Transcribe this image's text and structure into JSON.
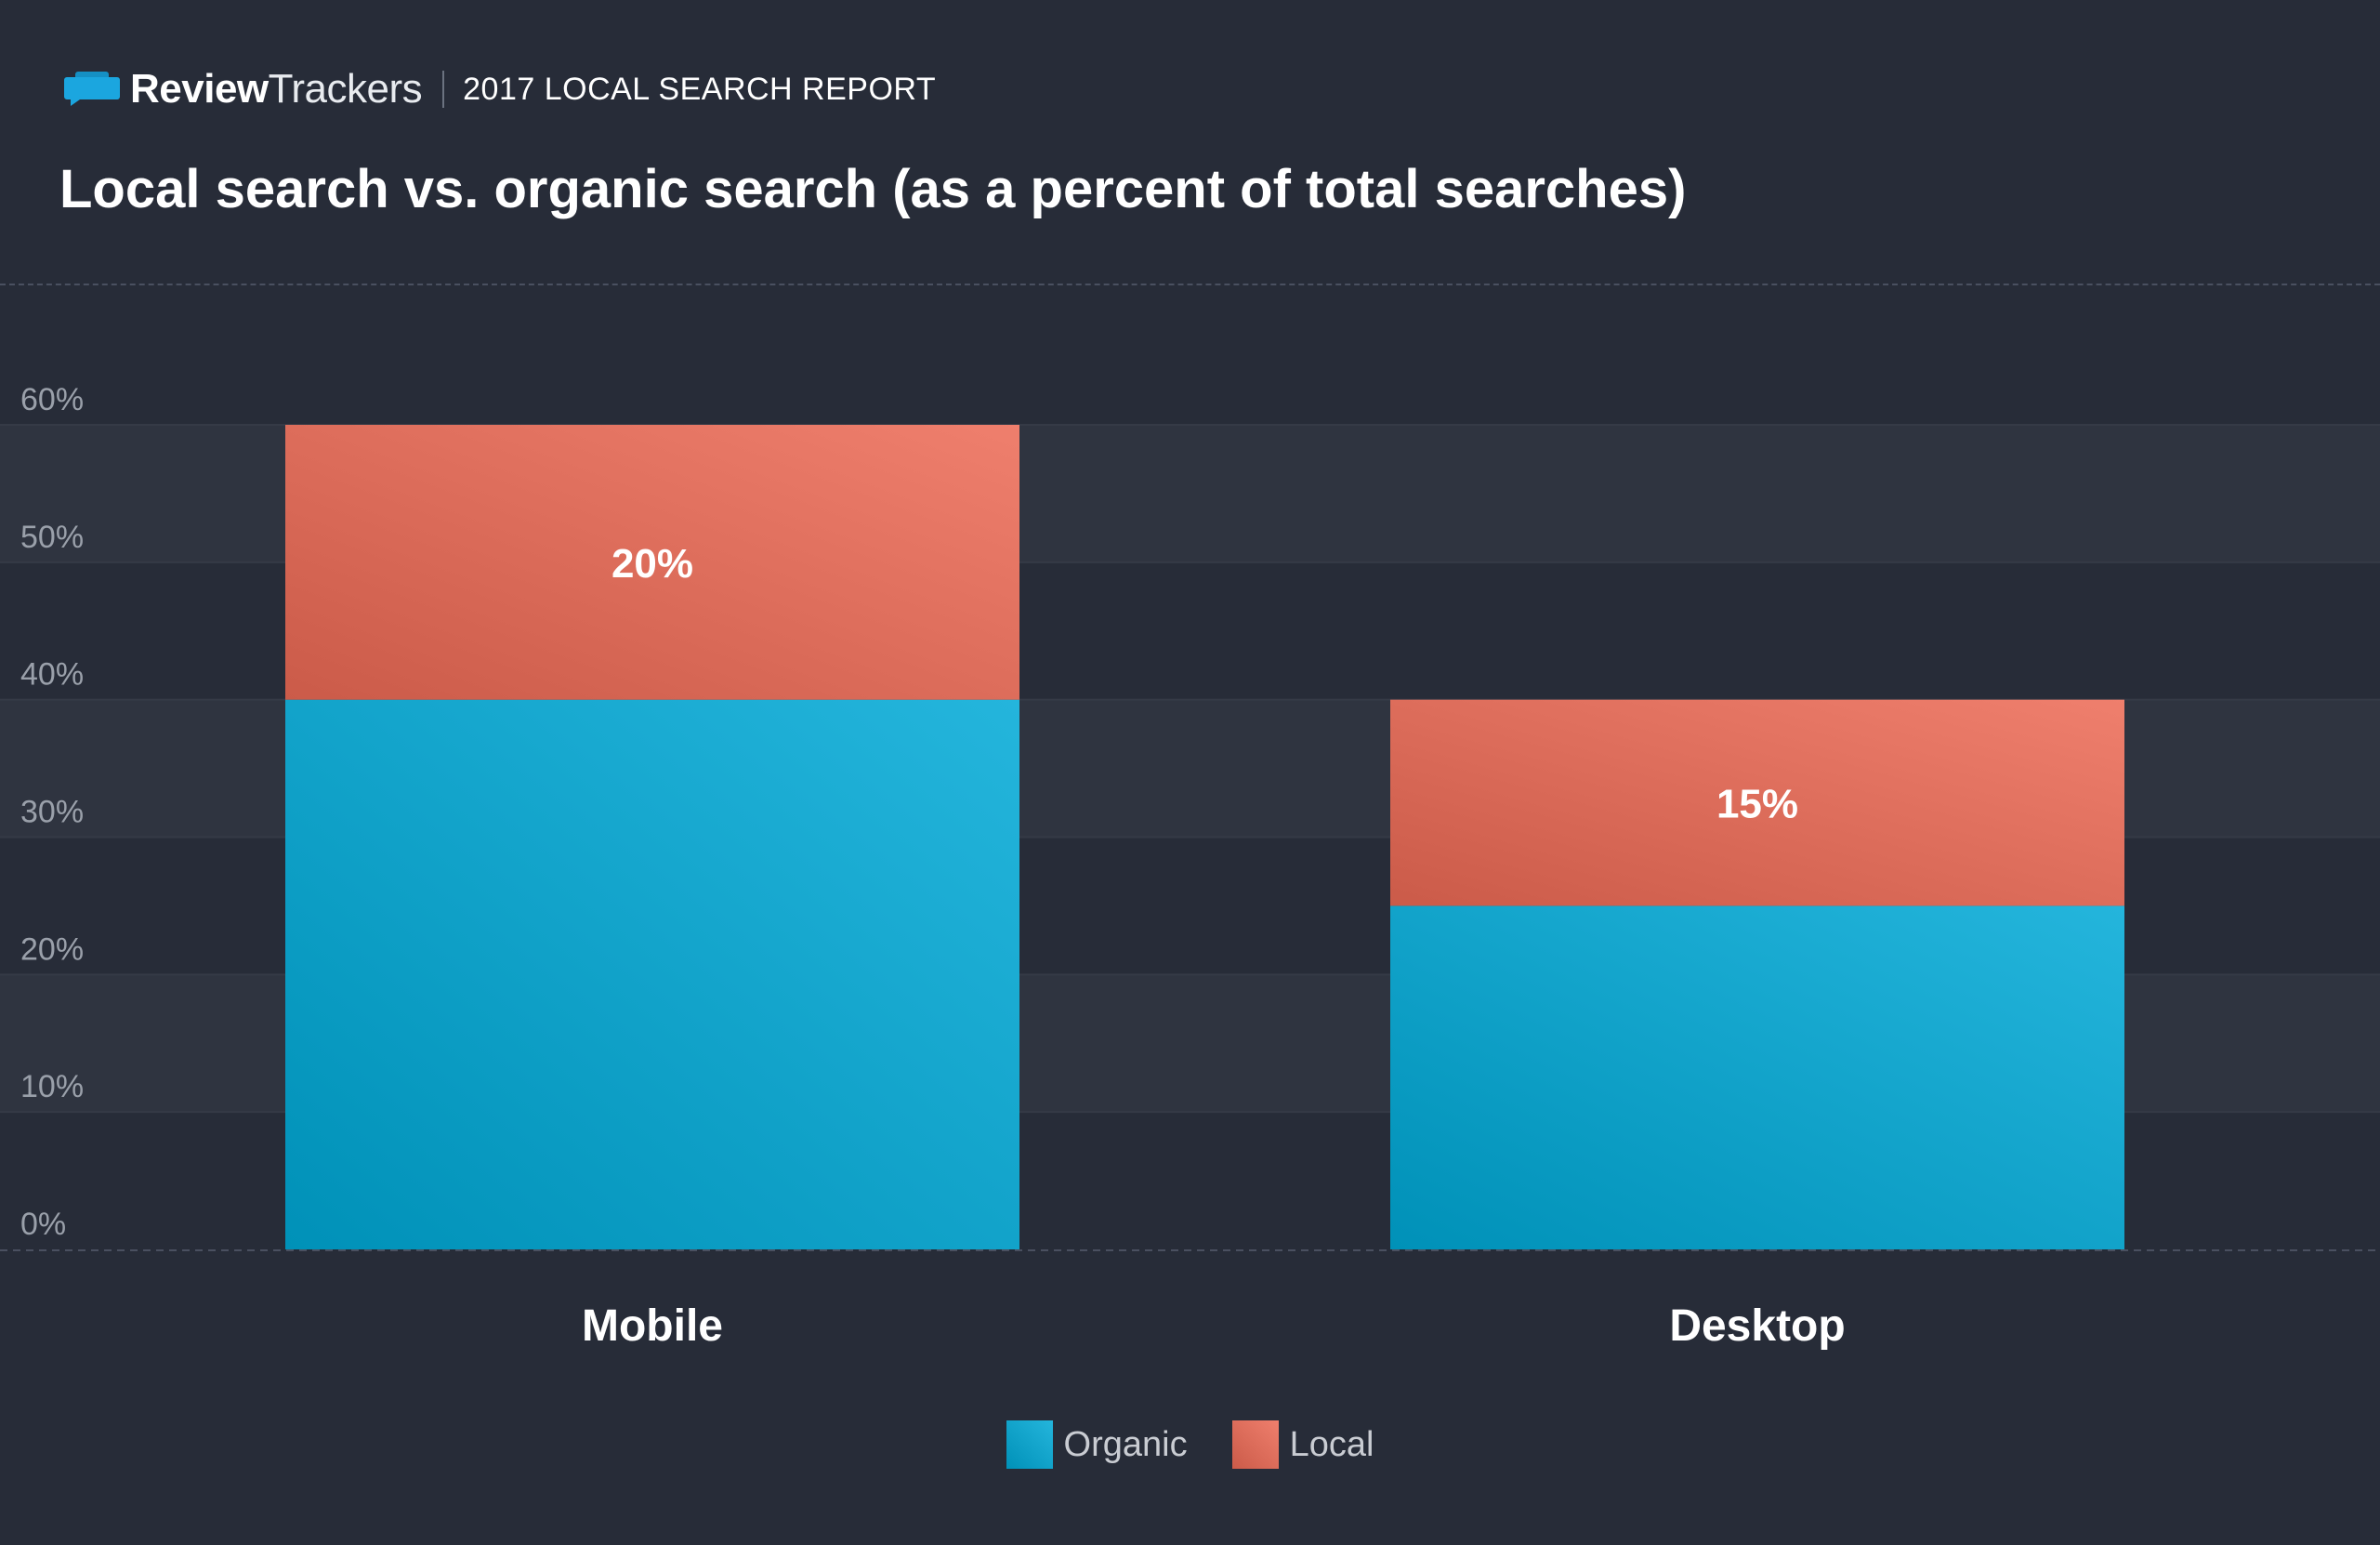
{
  "header": {
    "brand_bold": "Review",
    "brand_light": "Trackers",
    "report": "2017 LOCAL SEARCH REPORT"
  },
  "chart_data": {
    "type": "bar",
    "stacked": true,
    "title": "Local search vs. organic search (as a percent of total searches)",
    "categories": [
      "Mobile",
      "Desktop"
    ],
    "series": [
      {
        "name": "Organic",
        "values": [
          40,
          25
        ],
        "color": "#00a9d6"
      },
      {
        "name": "Local",
        "values": [
          20,
          15
        ],
        "color": "#ec6a55",
        "labels": [
          "20%",
          "15%"
        ]
      }
    ],
    "ylim": [
      0,
      60
    ],
    "yticks": [
      "0%",
      "10%",
      "20%",
      "30%",
      "40%",
      "50%",
      "60%"
    ],
    "grid": "alternating bands",
    "legend_position": "bottom-center"
  }
}
